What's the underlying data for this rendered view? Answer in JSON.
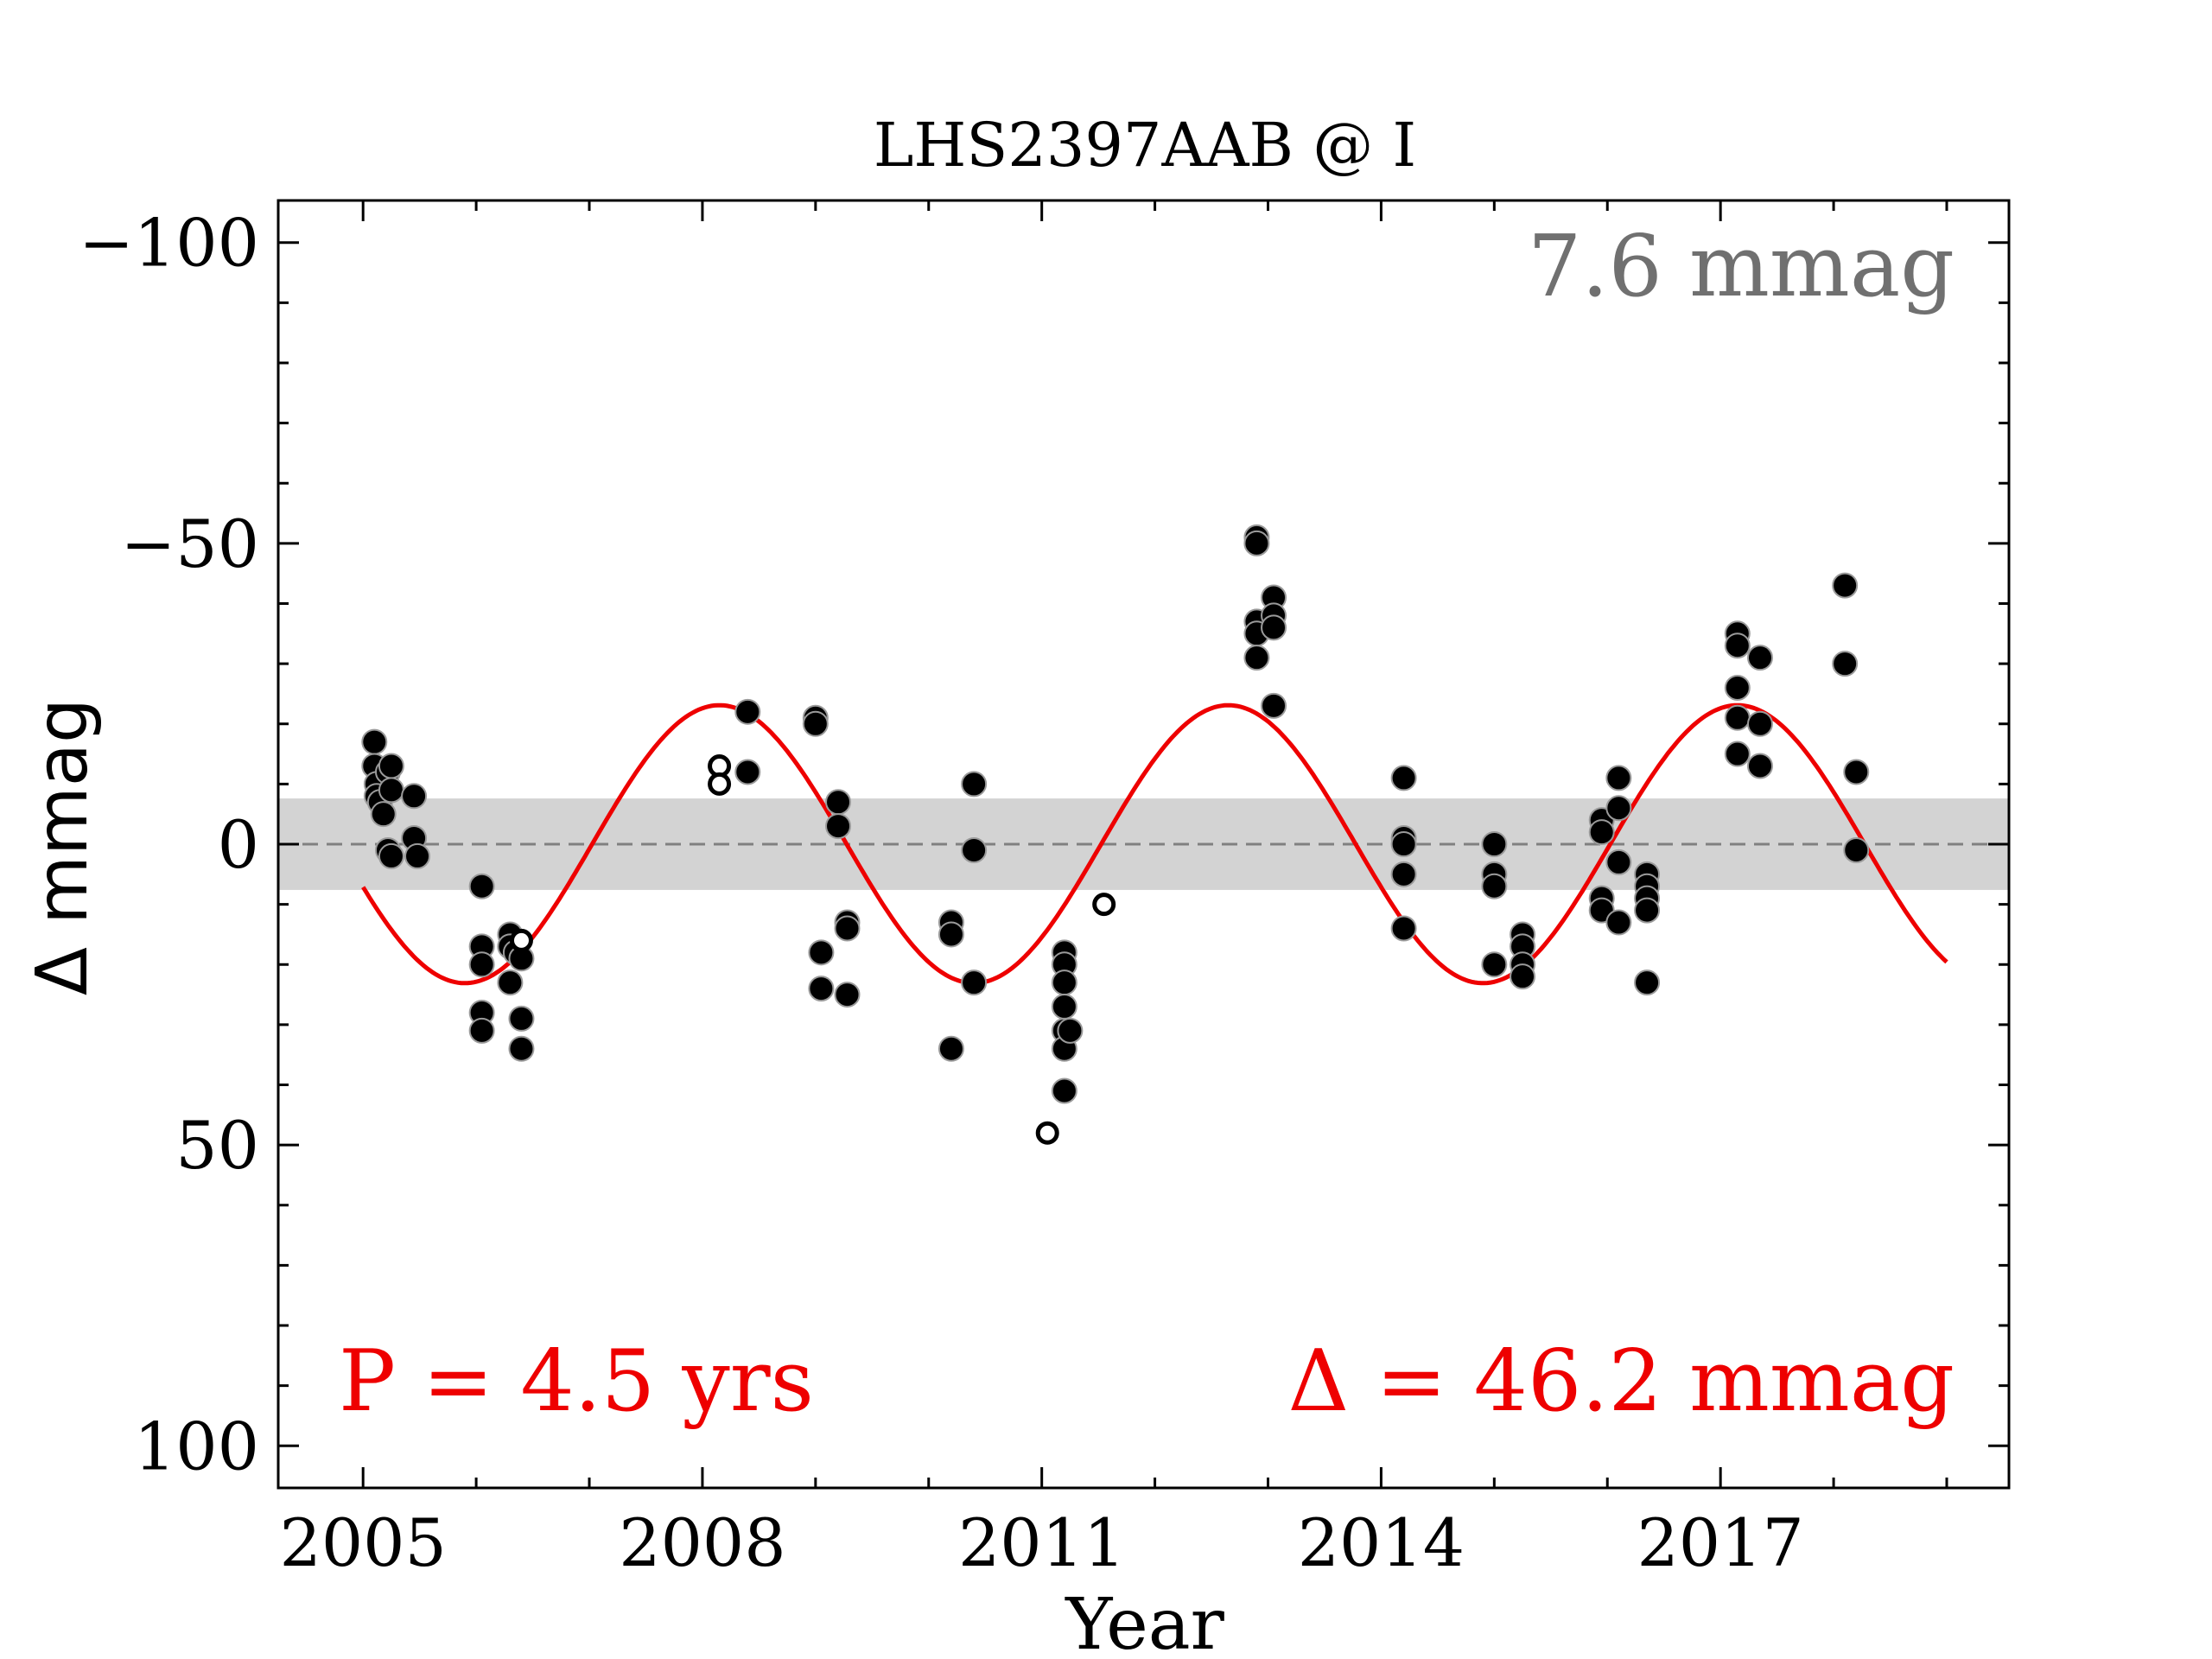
{
  "chart_data": {
    "type": "scatter",
    "title": "LHS2397AAB @ I",
    "xlabel": "Year",
    "ylabel": "Δ  mmag",
    "xlim": [
      2004.25,
      2019.55
    ],
    "ylim": [
      107,
      -107
    ],
    "y_inverted": true,
    "xticks": [
      2005,
      2008,
      2011,
      2014,
      2017
    ],
    "xtick_labels": [
      "2005",
      "2008",
      "2011",
      "2014",
      "2017"
    ],
    "yticks": [
      -100,
      -50,
      0,
      50,
      100
    ],
    "ytick_labels": [
      "−100",
      "−50",
      "0",
      "50",
      "100"
    ],
    "grid": false,
    "scatter_band_mmag": 7.6,
    "annotations": {
      "scatter_label": "7.6 mmag",
      "period_label": "P = 4.5 yrs",
      "amplitude_label": "Δ = 46.2 mmag"
    },
    "colors": {
      "fit": "#ee0000",
      "points": "#000000",
      "band": "#d3d3d3",
      "scatter_label": "#707070",
      "zero_line": "#808080"
    },
    "fit": {
      "type": "sinusoid",
      "period_years": 4.5,
      "semi_amplitude_mmag": 23.1,
      "minimum_year": 2005.9,
      "x_range": [
        2005.0,
        2019.0
      ]
    },
    "series": [
      {
        "marker": "filled",
        "points": [
          [
            2005.1,
            -17
          ],
          [
            2005.1,
            -13
          ],
          [
            2005.12,
            -10
          ],
          [
            2005.12,
            -8
          ],
          [
            2005.15,
            -7
          ],
          [
            2005.18,
            -5
          ],
          [
            2005.22,
            -12
          ],
          [
            2005.25,
            -13
          ],
          [
            2005.25,
            -9
          ],
          [
            2005.22,
            1
          ],
          [
            2005.25,
            2
          ],
          [
            2005.45,
            -8
          ],
          [
            2005.45,
            -1
          ],
          [
            2005.48,
            2
          ],
          [
            2006.05,
            7
          ],
          [
            2006.05,
            17
          ],
          [
            2006.05,
            20
          ],
          [
            2006.05,
            28
          ],
          [
            2006.05,
            31
          ],
          [
            2006.3,
            15
          ],
          [
            2006.3,
            17
          ],
          [
            2006.3,
            23
          ],
          [
            2006.35,
            18
          ],
          [
            2006.4,
            19
          ],
          [
            2006.4,
            29
          ],
          [
            2006.4,
            34
          ],
          [
            2008.4,
            -22
          ],
          [
            2008.4,
            -12
          ],
          [
            2009.0,
            -21
          ],
          [
            2009.0,
            -20
          ],
          [
            2009.05,
            18
          ],
          [
            2009.05,
            24
          ],
          [
            2009.2,
            -7
          ],
          [
            2009.2,
            -3
          ],
          [
            2009.28,
            13
          ],
          [
            2009.28,
            14
          ],
          [
            2009.28,
            25
          ],
          [
            2010.2,
            13
          ],
          [
            2010.2,
            15
          ],
          [
            2010.2,
            34
          ],
          [
            2010.4,
            -10
          ],
          [
            2010.4,
            1
          ],
          [
            2010.4,
            23
          ],
          [
            2011.2,
            18
          ],
          [
            2011.2,
            20
          ],
          [
            2011.2,
            23
          ],
          [
            2011.2,
            27
          ],
          [
            2011.2,
            31
          ],
          [
            2011.2,
            34
          ],
          [
            2011.2,
            41
          ],
          [
            2011.25,
            31
          ],
          [
            2012.9,
            -51
          ],
          [
            2012.9,
            -50
          ],
          [
            2012.9,
            -37
          ],
          [
            2012.9,
            -35
          ],
          [
            2012.9,
            -31
          ],
          [
            2013.05,
            -41
          ],
          [
            2013.05,
            -38
          ],
          [
            2013.05,
            -36
          ],
          [
            2013.05,
            -23
          ],
          [
            2014.2,
            -11
          ],
          [
            2014.2,
            -1
          ],
          [
            2014.2,
            0
          ],
          [
            2014.2,
            5
          ],
          [
            2014.2,
            14
          ],
          [
            2015.0,
            0
          ],
          [
            2015.0,
            5
          ],
          [
            2015.0,
            7
          ],
          [
            2015.0,
            20
          ],
          [
            2015.25,
            15
          ],
          [
            2015.25,
            17
          ],
          [
            2015.25,
            20
          ],
          [
            2015.25,
            22
          ],
          [
            2015.95,
            -4
          ],
          [
            2015.95,
            -2
          ],
          [
            2015.95,
            9
          ],
          [
            2015.95,
            11
          ],
          [
            2016.1,
            -11
          ],
          [
            2016.1,
            -6
          ],
          [
            2016.1,
            3
          ],
          [
            2016.1,
            13
          ],
          [
            2016.35,
            5
          ],
          [
            2016.35,
            7
          ],
          [
            2016.35,
            9
          ],
          [
            2016.35,
            11
          ],
          [
            2016.35,
            23
          ],
          [
            2017.15,
            -35
          ],
          [
            2017.15,
            -33
          ],
          [
            2017.15,
            -26
          ],
          [
            2017.15,
            -21
          ],
          [
            2017.15,
            -15
          ],
          [
            2017.35,
            -31
          ],
          [
            2017.35,
            -20
          ],
          [
            2017.35,
            -13
          ],
          [
            2018.1,
            -43
          ],
          [
            2018.1,
            -30
          ],
          [
            2018.2,
            -12
          ],
          [
            2018.2,
            1
          ]
        ]
      },
      {
        "marker": "open",
        "points": [
          [
            2006.4,
            16
          ],
          [
            2008.15,
            -13
          ],
          [
            2008.15,
            -10
          ],
          [
            2011.05,
            48
          ],
          [
            2011.55,
            10
          ]
        ]
      }
    ]
  }
}
